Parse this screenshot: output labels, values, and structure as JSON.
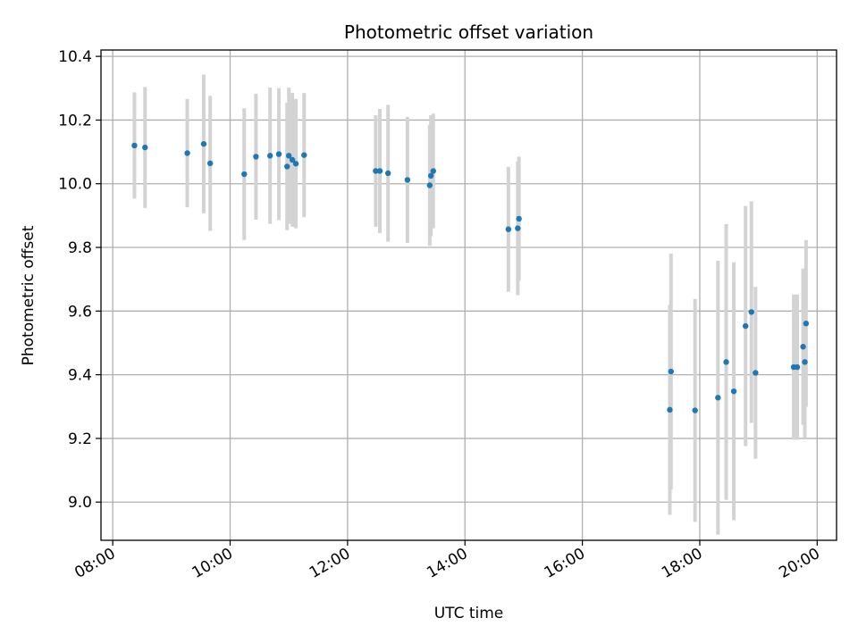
{
  "chart_data": {
    "type": "scatter",
    "title": "Photometric offset variation",
    "xlabel": "UTC time",
    "ylabel": "Photometric offset",
    "x_ticks": [
      "08:00",
      "10:00",
      "12:00",
      "14:00",
      "16:00",
      "18:00",
      "20:00"
    ],
    "x_tick_hours": [
      8,
      10,
      12,
      14,
      16,
      18,
      20
    ],
    "y_ticks": [
      "9.0",
      "9.2",
      "9.4",
      "9.6",
      "9.8",
      "10.0",
      "10.2",
      "10.4"
    ],
    "y_tick_values": [
      9.0,
      9.2,
      9.4,
      9.6,
      9.8,
      10.0,
      10.2,
      10.4
    ],
    "xlim_hours": [
      7.8,
      20.33
    ],
    "ylim": [
      8.88,
      10.42
    ],
    "grid": true,
    "colors": {
      "points": "#1f77b4",
      "errorbars": "#d3d3d3",
      "grid": "#b0b0b0"
    },
    "series": [
      {
        "points": [
          {
            "x": 8.37,
            "y": 10.12,
            "err": 0.167
          },
          {
            "x": 8.55,
            "y": 10.114,
            "err": 0.19
          },
          {
            "x": 9.27,
            "y": 10.096,
            "err": 0.17
          },
          {
            "x": 9.55,
            "y": 10.125,
            "err": 0.218
          },
          {
            "x": 9.66,
            "y": 10.064,
            "err": 0.212
          },
          {
            "x": 10.24,
            "y": 10.03,
            "err": 0.207
          },
          {
            "x": 10.44,
            "y": 10.085,
            "err": 0.198
          },
          {
            "x": 10.68,
            "y": 10.088,
            "err": 0.214
          },
          {
            "x": 10.83,
            "y": 10.093,
            "err": 0.207
          },
          {
            "x": 10.97,
            "y": 10.054,
            "err": 0.2
          },
          {
            "x": 11.0,
            "y": 10.088,
            "err": 0.214
          },
          {
            "x": 11.06,
            "y": 10.075,
            "err": 0.21
          },
          {
            "x": 11.12,
            "y": 10.063,
            "err": 0.203
          },
          {
            "x": 11.26,
            "y": 10.09,
            "err": 0.195
          },
          {
            "x": 12.48,
            "y": 10.04,
            "err": 0.175
          },
          {
            "x": 12.55,
            "y": 10.04,
            "err": 0.195
          },
          {
            "x": 12.69,
            "y": 10.033,
            "err": 0.215
          },
          {
            "x": 13.02,
            "y": 10.012,
            "err": 0.198
          },
          {
            "x": 13.4,
            "y": 9.995,
            "err": 0.19
          },
          {
            "x": 13.42,
            "y": 10.025,
            "err": 0.19
          },
          {
            "x": 13.46,
            "y": 10.04,
            "err": 0.18
          },
          {
            "x": 14.74,
            "y": 9.857,
            "err": 0.196
          },
          {
            "x": 14.9,
            "y": 9.86,
            "err": 0.21
          },
          {
            "x": 14.92,
            "y": 9.89,
            "err": 0.195
          },
          {
            "x": 17.49,
            "y": 9.29,
            "err": 0.33
          },
          {
            "x": 17.51,
            "y": 9.41,
            "err": 0.37
          },
          {
            "x": 17.92,
            "y": 9.288,
            "err": 0.35
          },
          {
            "x": 18.31,
            "y": 9.328,
            "err": 0.43
          },
          {
            "x": 18.45,
            "y": 9.44,
            "err": 0.433
          },
          {
            "x": 18.58,
            "y": 9.348,
            "err": 0.405
          },
          {
            "x": 18.78,
            "y": 9.553,
            "err": 0.377
          },
          {
            "x": 18.88,
            "y": 9.597,
            "err": 0.348
          },
          {
            "x": 18.95,
            "y": 9.406,
            "err": 0.27
          },
          {
            "x": 19.6,
            "y": 9.424,
            "err": 0.228
          },
          {
            "x": 19.66,
            "y": 9.424,
            "err": 0.228
          },
          {
            "x": 19.76,
            "y": 9.488,
            "err": 0.245
          },
          {
            "x": 19.79,
            "y": 9.44,
            "err": 0.24
          },
          {
            "x": 19.81,
            "y": 9.561,
            "err": 0.262
          }
        ]
      }
    ]
  }
}
